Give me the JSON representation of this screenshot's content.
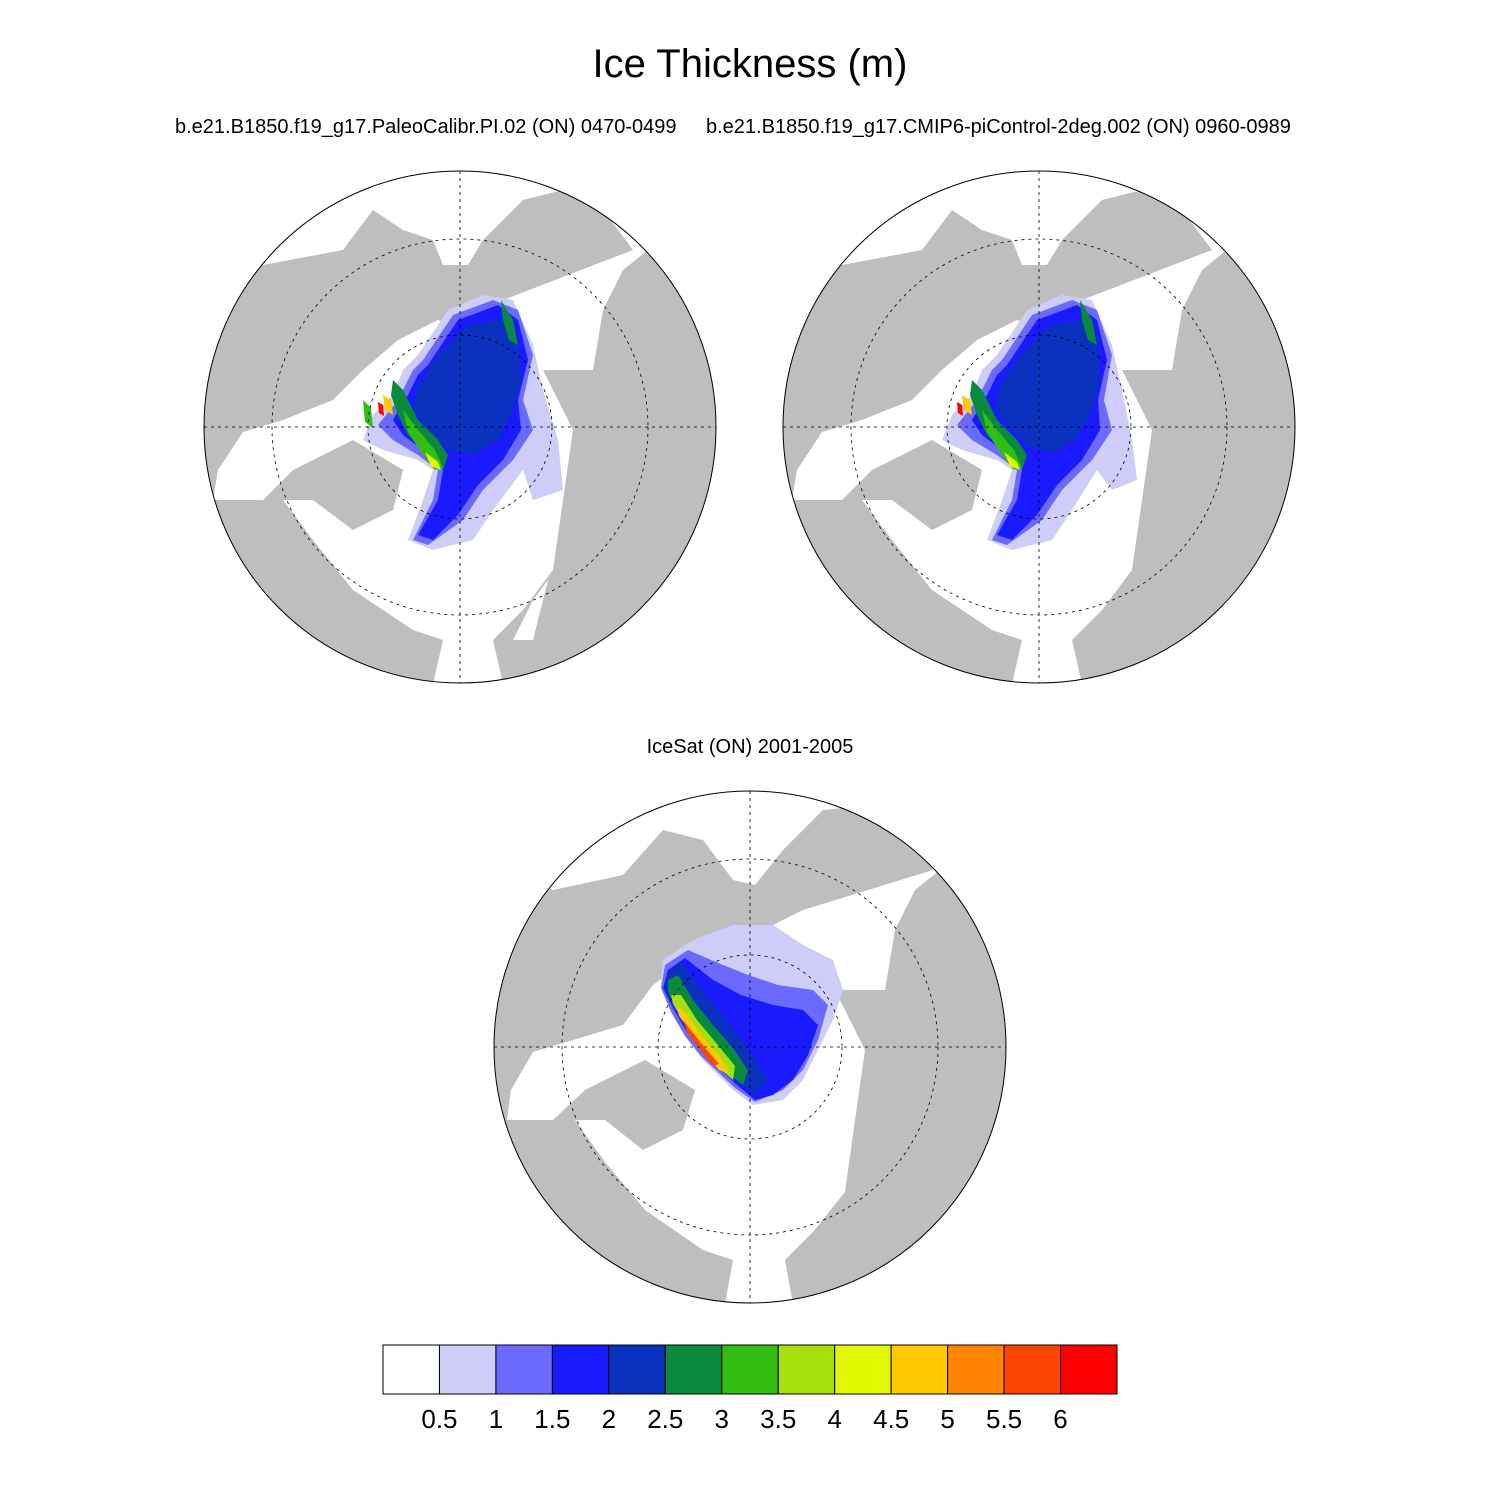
{
  "title": "Ice Thickness (m)",
  "panels": [
    {
      "subtitle": "b.e21.B1850.f19_g17.PaleoCalibr.PI.02 (ON) 0470-0499"
    },
    {
      "subtitle": "b.e21.B1850.f19_g17.CMIP6-piControl-2deg.002 (ON) 0960-0989"
    },
    {
      "subtitle": "IceSat (ON) 2001-2005"
    }
  ],
  "colorbar": {
    "ticks": [
      "0.5",
      "1",
      "1.5",
      "2",
      "2.5",
      "3",
      "3.5",
      "4",
      "4.5",
      "5",
      "5.5",
      "6"
    ],
    "colors": [
      "#ffffff",
      "#cdcdf8",
      "#6a6aff",
      "#1a1aff",
      "#0a32be",
      "#0a8a3c",
      "#32be12",
      "#a6e00a",
      "#e2f800",
      "#ffc800",
      "#ff8200",
      "#ff4600",
      "#ff0000"
    ]
  },
  "map_colors": {
    "land": "#bebebe",
    "ocean": "#ffffff"
  }
}
